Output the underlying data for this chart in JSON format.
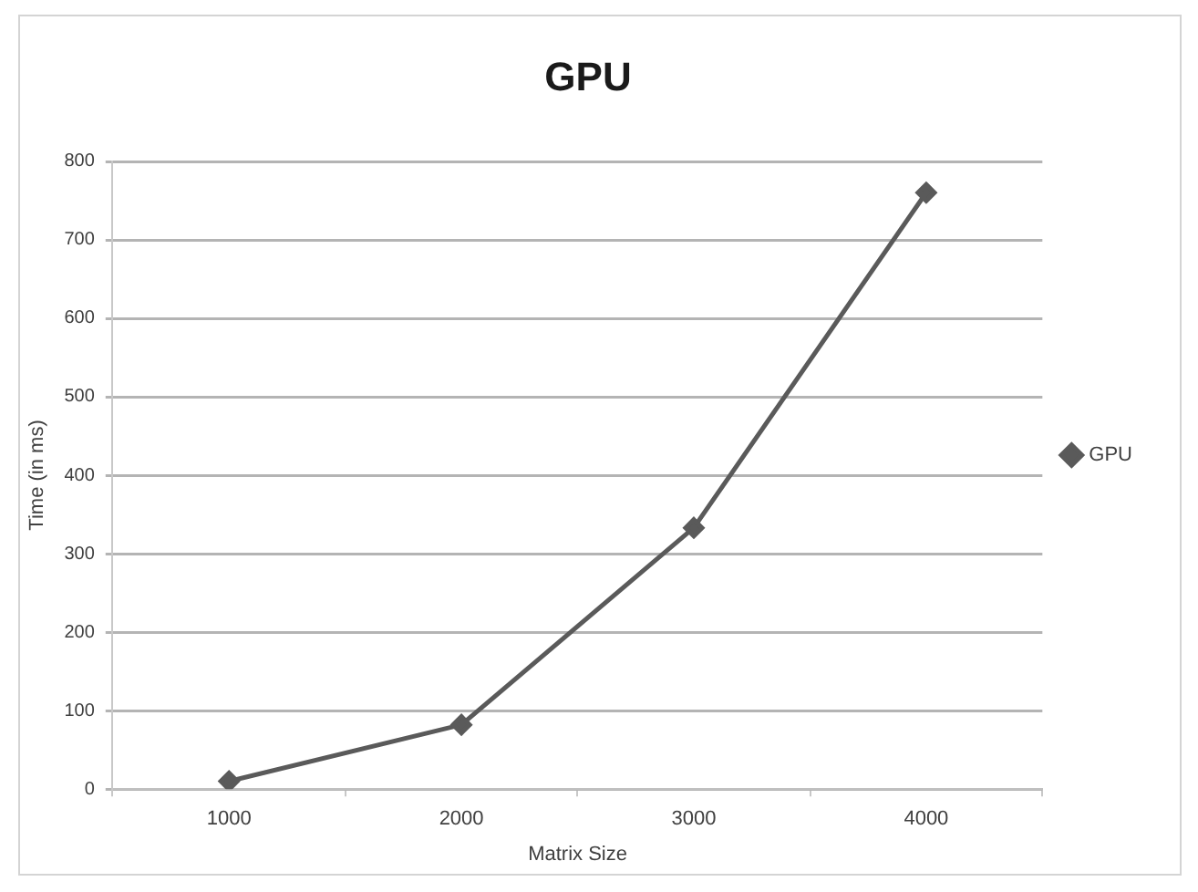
{
  "chart_data": {
    "type": "line",
    "title": "GPU",
    "xlabel": "Matrix Size",
    "ylabel": "Time (in ms)",
    "categories": [
      "1000",
      "2000",
      "3000",
      "4000"
    ],
    "series": [
      {
        "name": "GPU",
        "color": "#5a5a5a",
        "values": [
          10,
          82,
          333,
          760
        ]
      }
    ],
    "ylim": [
      0,
      800
    ],
    "yticks": [
      0,
      100,
      200,
      300,
      400,
      500,
      600,
      700,
      800
    ],
    "grid": "y",
    "legend": "right",
    "marker": "diamond",
    "line_style": "solid"
  }
}
